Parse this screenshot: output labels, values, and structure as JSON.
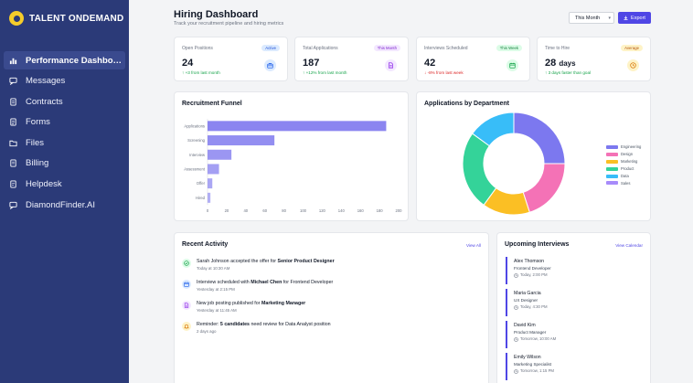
{
  "brand": {
    "name": "TALENT ONDEMAND"
  },
  "sidebar": {
    "items": [
      {
        "label": "Performance Dashbo…",
        "icon": "bar-chart-icon",
        "active": true
      },
      {
        "label": "Messages",
        "icon": "message-icon"
      },
      {
        "label": "Contracts",
        "icon": "contract-icon"
      },
      {
        "label": "Forms",
        "icon": "form-icon"
      },
      {
        "label": "Files",
        "icon": "folder-icon"
      },
      {
        "label": "Billing",
        "icon": "billing-icon"
      },
      {
        "label": "Helpdesk",
        "icon": "help-icon"
      },
      {
        "label": "DiamondFinder.AI",
        "icon": "chat-icon"
      }
    ]
  },
  "header": {
    "title": "Hiring Dashboard",
    "subtitle": "Track your recruitment pipeline and hiring metrics",
    "period_select": "This Month",
    "export_label": "Export"
  },
  "stats": [
    {
      "label": "Open Positions",
      "badge": "Active",
      "value": "24",
      "unit": "",
      "change": "+3 from last month",
      "trend": "up",
      "badge_bg": "#dbeafe",
      "badge_color": "#1d4ed8",
      "icon_bg": "#dbeafe",
      "icon_color": "#2563eb",
      "icon": "briefcase-icon"
    },
    {
      "label": "Total Applications",
      "badge": "This Month",
      "value": "187",
      "unit": "",
      "change": "+12% from last month",
      "trend": "up",
      "badge_bg": "#f3e8ff",
      "badge_color": "#7e22ce",
      "icon_bg": "#f3e8ff",
      "icon_color": "#9333ea",
      "icon": "document-icon"
    },
    {
      "label": "Interviews Scheduled",
      "badge": "This Week",
      "value": "42",
      "unit": "",
      "change": "-8% from last week",
      "trend": "down",
      "badge_bg": "#dcfce7",
      "badge_color": "#15803d",
      "icon_bg": "#dcfce7",
      "icon_color": "#16a34a",
      "icon": "calendar-icon"
    },
    {
      "label": "Time to Hire",
      "badge": "Average",
      "value": "28",
      "unit": "days",
      "change": "3 days faster than goal",
      "trend": "up",
      "badge_bg": "#fef3c7",
      "badge_color": "#b45309",
      "icon_bg": "#fef3c7",
      "icon_color": "#d97706",
      "icon": "clock-icon"
    }
  ],
  "funnel": {
    "title": "Recruitment Funnel"
  },
  "departments": {
    "title": "Applications by Department"
  },
  "chart_data": [
    {
      "type": "bar",
      "orientation": "horizontal",
      "title": "Recruitment Funnel",
      "categories": [
        "Applications",
        "Screening",
        "Interview",
        "Assessment",
        "Offer",
        "Hired"
      ],
      "values": [
        187,
        70,
        25,
        12,
        5,
        3
      ],
      "xlim": [
        0,
        200
      ],
      "xticks": [
        0,
        20,
        40,
        60,
        80,
        100,
        120,
        140,
        160,
        180,
        200
      ],
      "color": "#8b85f0",
      "grid": false
    },
    {
      "type": "pie",
      "donut": true,
      "title": "Applications by Department",
      "categories": [
        "Engineering",
        "Design",
        "Marketing",
        "Product",
        "Data",
        "Sales"
      ],
      "values": [
        25,
        20,
        15,
        25,
        15,
        0
      ],
      "colors": [
        "#7c78ef",
        "#f472b6",
        "#fbbf24",
        "#34d399",
        "#38bdf8",
        "#a78bfa"
      ],
      "legend": "right"
    }
  ],
  "activity": {
    "title": "Recent Activity",
    "view_all": "View All",
    "items": [
      {
        "pre": "Sarah Johnson accepted the offer for ",
        "bold": "Senior Product Designer",
        "post": "",
        "time": "Today at 10:30 AM",
        "icon": "check-icon",
        "bg": "#dcfce7",
        "color": "#16a34a"
      },
      {
        "pre": "Interview scheduled with ",
        "bold": "Michael Chen",
        "post": " for Frontend Developer",
        "time": "Yesterday at 2:15 PM",
        "icon": "calendar-icon",
        "bg": "#dbeafe",
        "color": "#2563eb"
      },
      {
        "pre": "New job posting published for ",
        "bold": "Marketing Manager",
        "post": "",
        "time": "Yesterday at 11:45 AM",
        "icon": "document-icon",
        "bg": "#f3e8ff",
        "color": "#9333ea"
      },
      {
        "pre": "Reminder: ",
        "bold": "5 candidates",
        "post": " need review for Data Analyst position",
        "time": "2 days ago",
        "icon": "bell-icon",
        "bg": "#fef3c7",
        "color": "#d97706"
      }
    ]
  },
  "interviews": {
    "title": "Upcoming Interviews",
    "view_calendar": "View Calendar",
    "items": [
      {
        "name": "Alex Thomson",
        "role": "Frontend Developer",
        "time": "Today, 2:00 PM"
      },
      {
        "name": "Maria Garcia",
        "role": "UX Designer",
        "time": "Today, 4:30 PM"
      },
      {
        "name": "David Kim",
        "role": "Product Manager",
        "time": "Tomorrow, 10:00 AM"
      },
      {
        "name": "Emily Wilson",
        "role": "Marketing Specialist",
        "time": "Tomorrow, 1:15 PM"
      }
    ]
  }
}
